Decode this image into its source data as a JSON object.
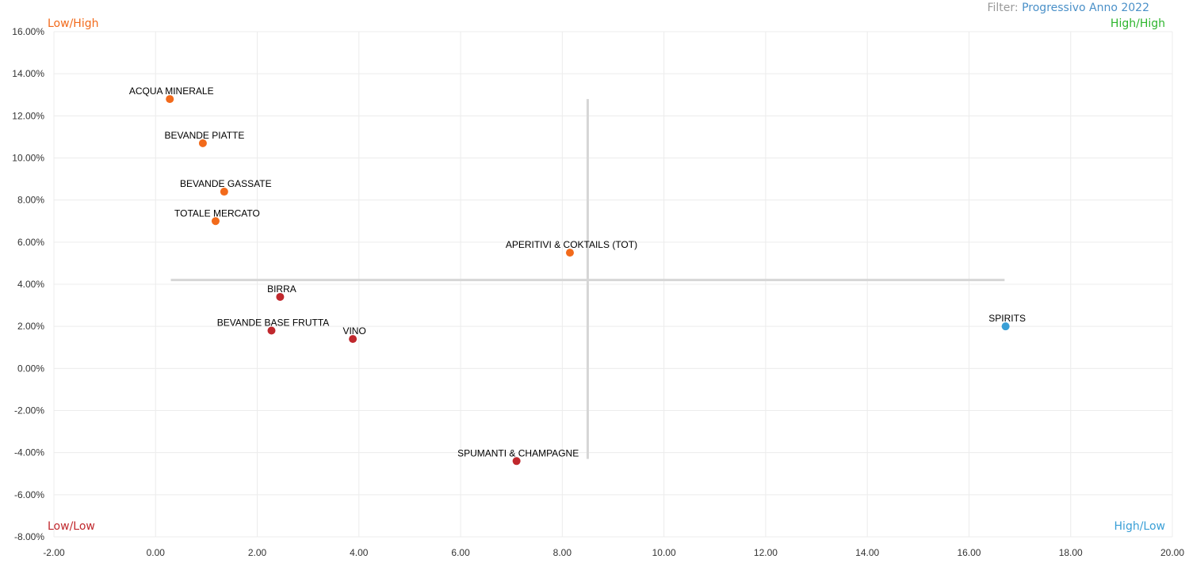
{
  "filter": {
    "label": "Filter:",
    "value": "Progressivo Anno 2022"
  },
  "colors": {
    "high_growth": "#f26a1b",
    "low": "#c0282d",
    "high_low": "#3a9fd6",
    "high_high": "#2db52d"
  },
  "chart_data": {
    "type": "scatter",
    "title": "",
    "xlabel": "",
    "ylabel": "",
    "xlim": [
      -2,
      20
    ],
    "ylim": [
      -8,
      16
    ],
    "x_ticks": [
      "-2.00",
      "0.00",
      "2.00",
      "4.00",
      "6.00",
      "8.00",
      "10.00",
      "12.00",
      "14.00",
      "16.00",
      "18.00",
      "20.00"
    ],
    "y_ticks": [
      "16.00%",
      "14.00%",
      "12.00%",
      "10.00%",
      "8.00%",
      "6.00%",
      "4.00%",
      "2.00%",
      "0.00%",
      "-2.00%",
      "-4.00%",
      "-6.00%",
      "-8.00%"
    ],
    "grid": true,
    "quadrant_labels": [
      {
        "text": "Low/High",
        "position": "top-left",
        "color": "#f26a1b"
      },
      {
        "text": "High/High",
        "position": "top-right",
        "color": "#2db52d"
      },
      {
        "text": "Low/Low",
        "position": "bottom-left",
        "color": "#c0282d"
      },
      {
        "text": "High/Low",
        "position": "bottom-right",
        "color": "#3a9fd6"
      }
    ],
    "reference_lines": {
      "horizontal": {
        "y": 4.2,
        "x_from": 0.3,
        "x_to": 16.7
      },
      "vertical": {
        "x": 8.5,
        "y_from": -4.3,
        "y_to": 12.8
      }
    },
    "points": [
      {
        "label": "ACQUA MINERALE",
        "x": 0.28,
        "y": 12.8,
        "color": "#f26a1b"
      },
      {
        "label": "BEVANDE PIATTE",
        "x": 0.93,
        "y": 10.7,
        "color": "#f26a1b"
      },
      {
        "label": "BEVANDE GASSATE",
        "x": 1.35,
        "y": 8.4,
        "color": "#f26a1b"
      },
      {
        "label": "TOTALE MERCATO",
        "x": 1.18,
        "y": 7.0,
        "color": "#f26a1b"
      },
      {
        "label": "APERITIVI & COKTAILS (TOT)",
        "x": 8.15,
        "y": 5.5,
        "color": "#f26a1b"
      },
      {
        "label": "BIRRA",
        "x": 2.45,
        "y": 3.4,
        "color": "#c0282d"
      },
      {
        "label": "BEVANDE BASE FRUTTA",
        "x": 2.28,
        "y": 1.8,
        "color": "#c0282d"
      },
      {
        "label": "VINO",
        "x": 3.88,
        "y": 1.4,
        "color": "#c0282d"
      },
      {
        "label": "SPUMANTI & CHAMPAGNE",
        "x": 7.1,
        "y": -4.4,
        "color": "#c0282d"
      },
      {
        "label": "SPIRITS",
        "x": 16.72,
        "y": 2.0,
        "color": "#3a9fd6"
      }
    ]
  }
}
